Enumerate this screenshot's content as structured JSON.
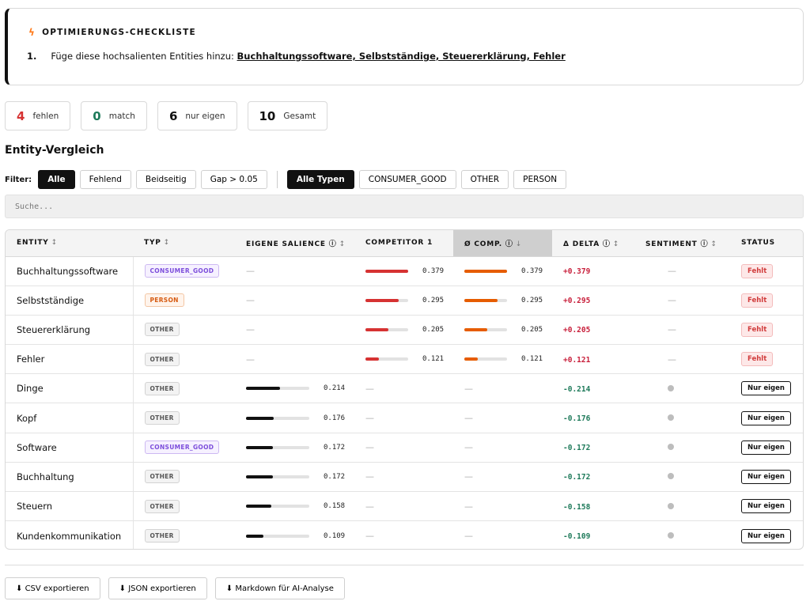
{
  "checklist": {
    "icon": "bolt-icon",
    "title": "OPTIMIERUNGS-CHECKLISTE",
    "items": [
      {
        "num": "1.",
        "text": "Füge diese hochsalienten Entities hinzu:",
        "entities": "Buchhaltungssoftware, Selbstständige, Steuererklärung, Fehler"
      }
    ]
  },
  "stats": [
    {
      "value": "4",
      "label": "fehlen",
      "color": "#d63232"
    },
    {
      "value": "0",
      "label": "match",
      "color": "#1e7a5a"
    },
    {
      "value": "6",
      "label": "nur eigen",
      "color": "#111111"
    },
    {
      "value": "10",
      "label": "Gesamt",
      "color": "#111111"
    }
  ],
  "section_title": "Entity-Vergleich",
  "filters": {
    "label": "Filter:",
    "status": [
      "Alle",
      "Fehlend",
      "Beidseitig",
      "Gap > 0.05"
    ],
    "types": [
      "Alle Typen",
      "CONSUMER_GOOD",
      "OTHER",
      "PERSON"
    ],
    "active_status": "Alle",
    "active_type": "Alle Typen"
  },
  "search": {
    "placeholder": "Suche..."
  },
  "table": {
    "headers": {
      "entity": "ENTITY",
      "typ": "TYP",
      "eigene": "EIGENE SALIENCE",
      "competitor": "COMPETITOR 1",
      "avg": "Ø COMP.",
      "delta": "Δ DELTA",
      "sentiment": "SENTIMENT",
      "status": "STATUS"
    },
    "sort_icons": {
      "unsorted": "↕",
      "sorted_desc": "↓",
      "info": "ⓘ"
    },
    "empty": "—",
    "rows": [
      {
        "entity": "Buchhaltungssoftware",
        "type": "CONSUMER_GOOD",
        "own": null,
        "own_text": "",
        "comp": 0.379,
        "comp_text": "0.379",
        "avg": 0.379,
        "avg_text": "0.379",
        "delta": "+0.379",
        "sentiment": "none",
        "status": "Fehlt"
      },
      {
        "entity": "Selbstständige",
        "type": "PERSON",
        "own": null,
        "own_text": "",
        "comp": 0.295,
        "comp_text": "0.295",
        "avg": 0.295,
        "avg_text": "0.295",
        "delta": "+0.295",
        "sentiment": "none",
        "status": "Fehlt"
      },
      {
        "entity": "Steuererklärung",
        "type": "OTHER",
        "own": null,
        "own_text": "",
        "comp": 0.205,
        "comp_text": "0.205",
        "avg": 0.205,
        "avg_text": "0.205",
        "delta": "+0.205",
        "sentiment": "none",
        "status": "Fehlt"
      },
      {
        "entity": "Fehler",
        "type": "OTHER",
        "own": null,
        "own_text": "",
        "comp": 0.121,
        "comp_text": "0.121",
        "avg": 0.121,
        "avg_text": "0.121",
        "delta": "+0.121",
        "sentiment": "none",
        "status": "Fehlt"
      },
      {
        "entity": "Dinge",
        "type": "OTHER",
        "own": 0.214,
        "own_text": "0.214",
        "comp": null,
        "comp_text": "",
        "avg": null,
        "avg_text": "",
        "delta": "-0.214",
        "sentiment": "neutral",
        "status": "Nur eigen"
      },
      {
        "entity": "Kopf",
        "type": "OTHER",
        "own": 0.176,
        "own_text": "0.176",
        "comp": null,
        "comp_text": "",
        "avg": null,
        "avg_text": "",
        "delta": "-0.176",
        "sentiment": "neutral",
        "status": "Nur eigen"
      },
      {
        "entity": "Software",
        "type": "CONSUMER_GOOD",
        "own": 0.172,
        "own_text": "0.172",
        "comp": null,
        "comp_text": "",
        "avg": null,
        "avg_text": "",
        "delta": "-0.172",
        "sentiment": "neutral",
        "status": "Nur eigen"
      },
      {
        "entity": "Buchhaltung",
        "type": "OTHER",
        "own": 0.172,
        "own_text": "0.172",
        "comp": null,
        "comp_text": "",
        "avg": null,
        "avg_text": "",
        "delta": "-0.172",
        "sentiment": "neutral",
        "status": "Nur eigen"
      },
      {
        "entity": "Steuern",
        "type": "OTHER",
        "own": 0.158,
        "own_text": "0.158",
        "comp": null,
        "comp_text": "",
        "avg": null,
        "avg_text": "",
        "delta": "-0.158",
        "sentiment": "neutral",
        "status": "Nur eigen"
      },
      {
        "entity": "Kundenkommunikation",
        "type": "OTHER",
        "own": 0.109,
        "own_text": "0.109",
        "comp": null,
        "comp_text": "",
        "avg": null,
        "avg_text": "",
        "delta": "-0.109",
        "sentiment": "neutral",
        "status": "Nur eigen"
      }
    ],
    "bar_scale_max": 0.379
  },
  "exports": [
    {
      "icon": "download-icon",
      "glyph": "⬇",
      "label": "CSV exportieren"
    },
    {
      "icon": "download-icon",
      "glyph": "⬇",
      "label": "JSON exportieren"
    },
    {
      "icon": "download-icon",
      "glyph": "⬇",
      "label": "Markdown für AI-Analyse"
    }
  ],
  "colors": {
    "missing": "#d63232",
    "competitor_bar": "#d63232",
    "avg_bar": "#e65c00",
    "own_bar": "#111111",
    "positive_delta": "#c81e3a",
    "negative_delta": "#1e7a5a"
  }
}
